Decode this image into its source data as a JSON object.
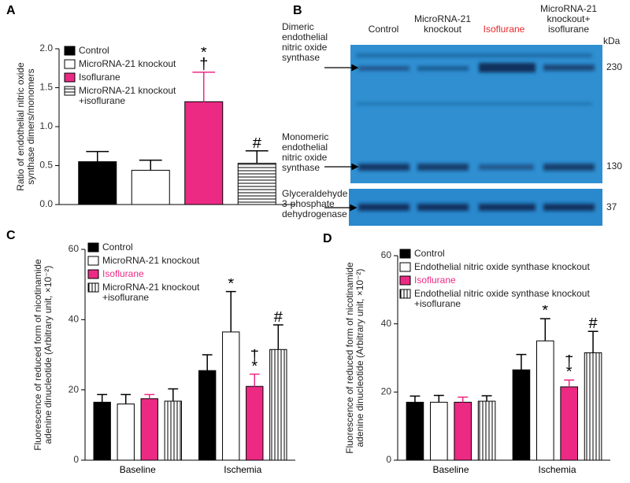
{
  "chart_data": [
    {
      "type": "bar",
      "panel": "A",
      "ylabel": "Ratio of endothelial nitric oxide\nsynthase dimers/monomers",
      "ylim": [
        0,
        2
      ],
      "yticks": [
        {
          "value": 0,
          "label": "0.0"
        },
        0.5,
        {
          "value": 1,
          "label": "1.0"
        },
        1.5,
        {
          "value": 2,
          "label": "2.0"
        }
      ],
      "series": [
        {
          "name": "Control",
          "color": "#000000",
          "values": [
            0.55
          ],
          "errors": [
            0.13
          ]
        },
        {
          "name": "MicroRNA-21 knockout",
          "color": "#ffffff",
          "values": [
            0.44
          ],
          "errors": [
            0.13
          ]
        },
        {
          "name": "Isoflurane",
          "color": "#ec2a84",
          "values": [
            1.32
          ],
          "errors": [
            0.38
          ],
          "annotations": [
            "*\n†"
          ]
        },
        {
          "name": "MicroRNA-21 knockout\n+isoflurane",
          "color": "#ffffff",
          "pattern": "horizontal",
          "values": [
            0.53
          ],
          "errors": [
            0.16
          ],
          "annotations": [
            "#"
          ]
        }
      ]
    },
    {
      "type": "bar",
      "panel": "C",
      "ylabel": "Fluorescence of reduced form of nicotinamide\nadenine dinucleotide (Arbitrary unit, ×10⁻²)",
      "categories": [
        "Baseline",
        "Ischemia"
      ],
      "ylim": [
        0,
        60
      ],
      "yticks": [
        0,
        20,
        40,
        60
      ],
      "series": [
        {
          "name": "Control",
          "color": "#000000",
          "values": [
            16.5,
            25.5
          ],
          "errors": [
            2.2,
            4.5
          ]
        },
        {
          "name": "MicroRNA-21 knockout",
          "color": "#ffffff",
          "values": [
            16,
            36.5
          ],
          "errors": [
            2.7,
            11.5
          ],
          "annotations": [
            null,
            "*"
          ]
        },
        {
          "name": "Isoflurane",
          "color": "#ec2a84",
          "legend_text_color": "#ec2a84",
          "values": [
            17.5,
            21
          ],
          "errors": [
            1.2,
            3.5
          ],
          "annotations": [
            null,
            "†\n*"
          ]
        },
        {
          "name": "MicroRNA-21 knockout\n+isoflurane",
          "color": "#ffffff",
          "pattern": "vertical",
          "values": [
            16.8,
            31.5
          ],
          "errors": [
            3.5,
            7
          ],
          "annotations": [
            null,
            "#"
          ]
        }
      ]
    },
    {
      "type": "bar",
      "panel": "D",
      "ylabel": "Fluorescence of reduced form of nicotinamide\nadenine dinucleotide (Arbitrary unit, ×10⁻²)",
      "categories": [
        "Baseline",
        "Ischemia"
      ],
      "ylim": [
        0,
        60
      ],
      "yticks": [
        0,
        20,
        40,
        60
      ],
      "series": [
        {
          "name": "Control",
          "color": "#000000",
          "values": [
            17,
            26.5
          ],
          "errors": [
            1.8,
            4.5
          ]
        },
        {
          "name": "Endothelial nitric oxide synthase knockout",
          "color": "#ffffff",
          "values": [
            17,
            35
          ],
          "errors": [
            2,
            6.5
          ],
          "annotations": [
            null,
            "*"
          ]
        },
        {
          "name": "Isoflurane",
          "color": "#ec2a84",
          "legend_text_color": "#ec2a84",
          "values": [
            17,
            21.5
          ],
          "errors": [
            1.5,
            2
          ],
          "annotations": [
            null,
            "†\n*"
          ]
        },
        {
          "name": "Endothelial nitric oxide synthase knockout\n+isoflurane",
          "color": "#ffffff",
          "pattern": "vertical",
          "values": [
            17.3,
            31.5
          ],
          "errors": [
            1.6,
            6.3
          ],
          "annotations": [
            null,
            "#"
          ]
        }
      ]
    }
  ],
  "blot": {
    "panel": "B",
    "columns": [
      "Control",
      "MicroRNA-21\nknockout",
      "Isoflurane",
      "MicroRNA-21\nknockout+\nisoflurane"
    ],
    "rows": [
      "Dimeric\nendothelial\nnitric oxide\nsynthase",
      "Monomeric\nendothelial\nnitric oxide\nsynthase",
      "Glyceraldehyde\n3-phosphate\ndehydrogenase"
    ],
    "unit": "kDa",
    "sizes": [
      "230",
      "130",
      "37"
    ]
  }
}
